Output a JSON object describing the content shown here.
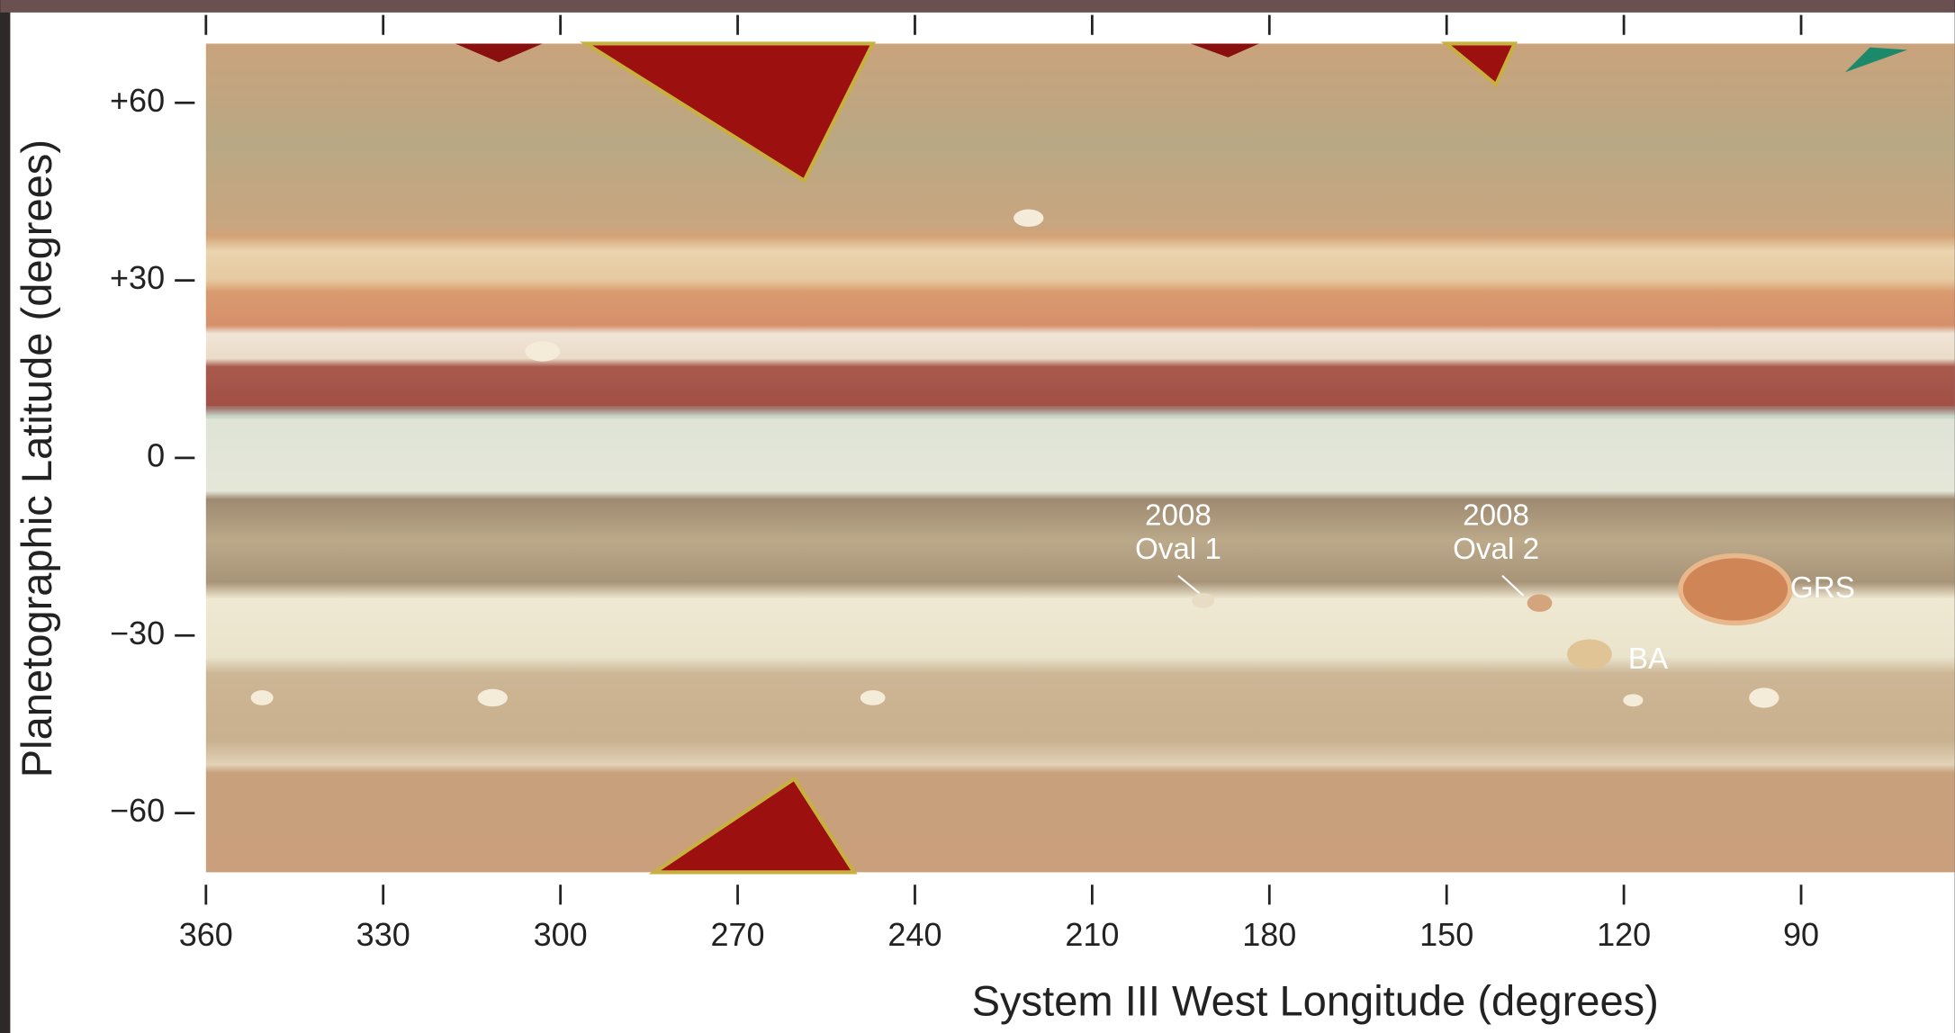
{
  "chart_data": {
    "type": "map",
    "x_label": "System III West Longitude (degrees)",
    "y_label": "Planetographic Latitude (degrees)",
    "xlim": [
      360,
      64
    ],
    "xticks": [
      360,
      330,
      300,
      270,
      240,
      210,
      180,
      150,
      120,
      90
    ],
    "ylim": [
      -70,
      70
    ],
    "yticks": [
      {
        "value": 60,
        "label": "+60"
      },
      {
        "value": 30,
        "label": "+30"
      },
      0,
      {
        "value": -30,
        "label": "−30"
      },
      {
        "value": -60,
        "label": "−60"
      }
    ],
    "annotations": [
      "2008\nOval 1",
      "2008\nOval 2",
      "GRS",
      "BA"
    ]
  }
}
